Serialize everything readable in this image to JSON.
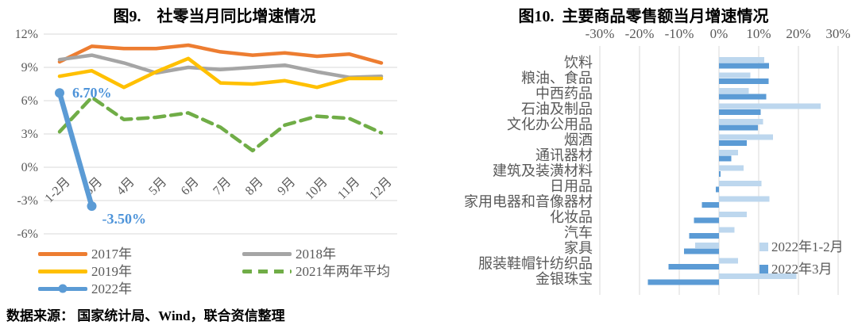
{
  "source_note": "数据来源： 国家统计局、Wind，联合资信整理",
  "styles": {
    "axis_text_color": "#595959",
    "gridline_color": "#D9D9D9",
    "title_color": "#000000"
  },
  "chart_data": [
    {
      "type": "line",
      "title": "图9.    社零当月同比增速情况",
      "categories": [
        "1-2月",
        "3月",
        "4月",
        "5月",
        "6月",
        "7月",
        "8月",
        "9月",
        "10月",
        "11月",
        "12月"
      ],
      "y_ticks": [
        "12%",
        "9%",
        "6%",
        "3%",
        "0%",
        "-3%",
        "-6%"
      ],
      "ylim": [
        -6,
        12
      ],
      "grid": "horizontal",
      "annotation_color": "#4D93D9",
      "series": [
        {
          "name": "2017年",
          "color": "#ED7D31",
          "style": "solid",
          "values": [
            9.5,
            10.9,
            10.7,
            10.7,
            11.0,
            10.4,
            10.1,
            10.3,
            10.0,
            10.2,
            9.4
          ]
        },
        {
          "name": "2018年",
          "color": "#A5A5A5",
          "style": "solid",
          "values": [
            9.7,
            10.1,
            9.4,
            8.5,
            9.0,
            8.8,
            9.0,
            9.2,
            8.6,
            8.1,
            8.2
          ]
        },
        {
          "name": "2019年",
          "color": "#FFC000",
          "style": "solid",
          "values": [
            8.2,
            8.7,
            7.2,
            8.6,
            9.8,
            7.6,
            7.5,
            7.8,
            7.2,
            8.0,
            8.0
          ]
        },
        {
          "name": "2021年两年平均",
          "color": "#70AD47",
          "style": "dashed",
          "values": [
            3.2,
            6.3,
            4.3,
            4.5,
            4.9,
            3.6,
            1.5,
            3.8,
            4.6,
            4.4,
            3.1
          ]
        },
        {
          "name": "2022年",
          "color": "#5B9BD5",
          "style": "solid",
          "marker": true,
          "values": [
            6.7,
            -3.5
          ],
          "point_labels": [
            "6.70%",
            "-3.50%"
          ]
        }
      ],
      "legend_position": "bottom-two-columns"
    },
    {
      "type": "bar",
      "title": "图10.  主要商品零售额当月增速情况",
      "orientation": "horizontal",
      "x_ticks": [
        "-30%",
        "-20%",
        "-10%",
        "0%",
        "10%",
        "20%",
        "30%"
      ],
      "xlim": [
        -30,
        30
      ],
      "grid": "vertical",
      "categories": [
        "饮料",
        "粮油、食品",
        "中西药品",
        "石油及制品",
        "文化办公用品",
        "烟酒",
        "通讯器材",
        "建筑及装潢材料",
        "日用品",
        "家用电器和音像器材",
        "化妆品",
        "汽车",
        "家具",
        "服装鞋帽针纺织品",
        "金银珠宝"
      ],
      "series": [
        {
          "name": "2022年1-2月",
          "color": "#BDD7EE",
          "values": [
            11.4,
            7.9,
            7.5,
            25.6,
            11.1,
            13.6,
            4.8,
            6.2,
            10.7,
            12.7,
            7.0,
            3.9,
            -6.0,
            4.8,
            19.5
          ]
        },
        {
          "name": "2022年3月",
          "color": "#5B9BD5",
          "values": [
            12.6,
            12.5,
            11.9,
            10.5,
            9.8,
            7.0,
            3.1,
            0.4,
            -0.8,
            -4.3,
            -6.3,
            -7.5,
            -8.8,
            -12.7,
            -17.9
          ]
        }
      ],
      "legend_position": "inside-right"
    }
  ]
}
